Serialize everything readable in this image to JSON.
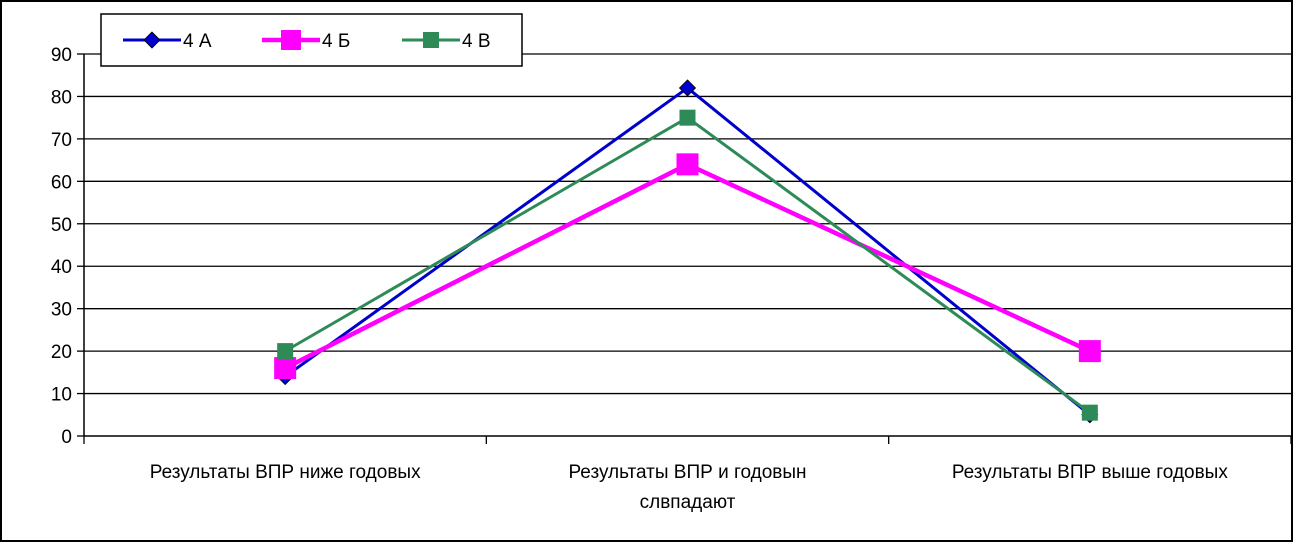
{
  "chart_data": {
    "type": "line",
    "title": "",
    "xlabel": "",
    "ylabel": "",
    "ylim": [
      0,
      90
    ],
    "y_ticks": [
      0,
      10,
      20,
      30,
      40,
      50,
      60,
      70,
      80,
      90
    ],
    "grid": true,
    "legend_position": "top-left",
    "categories": [
      [
        "Результаты ВПР ниже годовых"
      ],
      [
        "Результаты ВПР и годовын",
        "слвпадают"
      ],
      [
        "Результаты ВПР выше годовых"
      ]
    ],
    "series": [
      {
        "name": "4 А",
        "values": [
          14,
          82,
          5
        ],
        "color": "#0000cc",
        "marker": "diamond"
      },
      {
        "name": "4 Б",
        "values": [
          16,
          64,
          20
        ],
        "color": "#ff00ff",
        "marker": "square"
      },
      {
        "name": "4 В",
        "values": [
          20,
          75,
          5.5
        ],
        "color": "#2e8b57",
        "marker": "square"
      }
    ]
  }
}
